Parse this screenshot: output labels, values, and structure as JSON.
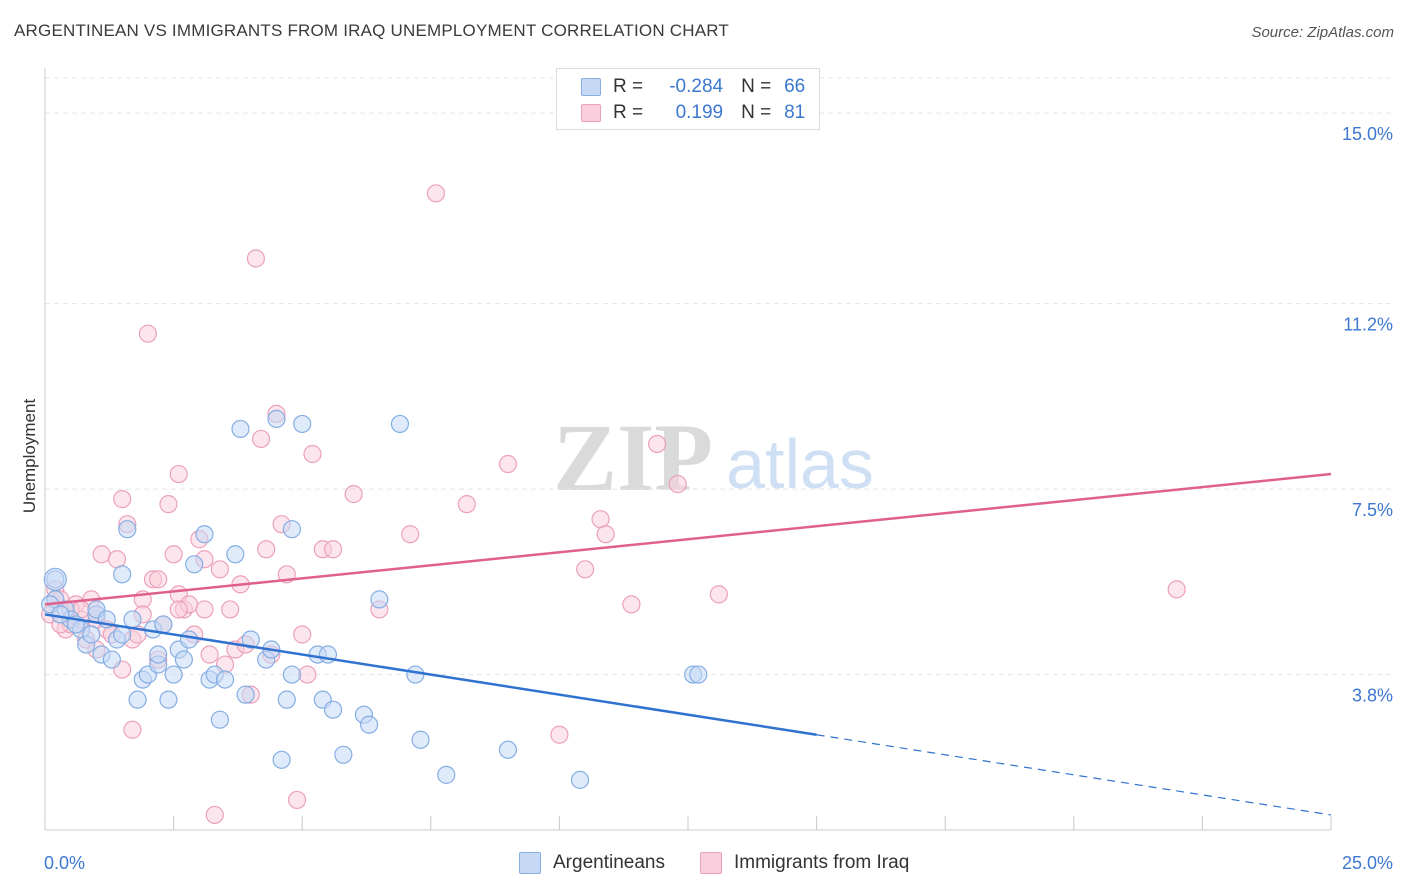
{
  "title": "ARGENTINEAN VS IMMIGRANTS FROM IRAQ UNEMPLOYMENT CORRELATION CHART",
  "source": "Source: ZipAtlas.com",
  "watermark": {
    "zip": "ZIP",
    "atlas": "atlas"
  },
  "legend": {
    "rows": [
      {
        "r_label": "R =",
        "r_value": "-0.284",
        "n_label": "N =",
        "n_value": "66",
        "color": "#86aee3"
      },
      {
        "r_label": "R =",
        "r_value": "0.199",
        "n_label": "N =",
        "n_value": "81",
        "color": "#eba1bb"
      }
    ]
  },
  "chart_data": {
    "type": "scatter",
    "title": "ARGENTINEAN VS IMMIGRANTS FROM IRAQ UNEMPLOYMENT CORRELATION CHART",
    "xlabel": "",
    "ylabel": "Unemployment",
    "xlim": [
      0,
      25
    ],
    "ylim": [
      0.7,
      15.7
    ],
    "x_tick_labels": [
      "0.0%",
      "25.0%"
    ],
    "y_ticks": [
      3.8,
      7.5,
      11.2,
      15.0
    ],
    "y_tick_labels": [
      "3.8%",
      "7.5%",
      "11.2%",
      "15.0%"
    ],
    "grid": "horizontal dashed",
    "legend_position": "bottom",
    "series": [
      {
        "name": "Argentineans",
        "color": "#86aee3",
        "fill": "#c5d9f5",
        "trend": {
          "x0": 0.0,
          "y0": 5.0,
          "x1": 15.0,
          "y1": 2.6,
          "dashed_to_x": 25.0,
          "dashed_to_y": 1.0,
          "color": "#2f72d0"
        },
        "points": [
          [
            0.2,
            5.7
          ],
          [
            0.2,
            5.3
          ],
          [
            0.4,
            5.1
          ],
          [
            0.5,
            4.9
          ],
          [
            0.7,
            4.7
          ],
          [
            0.8,
            4.4
          ],
          [
            0.9,
            4.6
          ],
          [
            1.0,
            5.0
          ],
          [
            1.0,
            5.1
          ],
          [
            1.1,
            4.2
          ],
          [
            1.2,
            4.9
          ],
          [
            1.3,
            4.1
          ],
          [
            1.4,
            4.5
          ],
          [
            1.5,
            5.8
          ],
          [
            1.6,
            6.7
          ],
          [
            1.7,
            4.9
          ],
          [
            1.8,
            3.3
          ],
          [
            1.9,
            3.7
          ],
          [
            2.0,
            3.8
          ],
          [
            2.1,
            4.7
          ],
          [
            2.2,
            4.0
          ],
          [
            2.3,
            4.8
          ],
          [
            2.4,
            3.3
          ],
          [
            2.5,
            3.8
          ],
          [
            2.6,
            4.3
          ],
          [
            2.7,
            4.1
          ],
          [
            2.8,
            4.5
          ],
          [
            2.9,
            6.0
          ],
          [
            3.1,
            6.6
          ],
          [
            3.2,
            3.7
          ],
          [
            3.3,
            3.8
          ],
          [
            3.4,
            2.9
          ],
          [
            3.5,
            3.7
          ],
          [
            3.7,
            6.2
          ],
          [
            3.8,
            8.7
          ],
          [
            3.9,
            3.4
          ],
          [
            4.0,
            4.5
          ],
          [
            4.3,
            4.1
          ],
          [
            4.4,
            4.3
          ],
          [
            4.5,
            8.9
          ],
          [
            4.6,
            2.1
          ],
          [
            4.7,
            3.3
          ],
          [
            4.8,
            3.8
          ],
          [
            4.8,
            6.7
          ],
          [
            5.0,
            8.8
          ],
          [
            5.3,
            4.2
          ],
          [
            5.4,
            3.3
          ],
          [
            5.5,
            4.2
          ],
          [
            5.6,
            3.1
          ],
          [
            5.8,
            2.2
          ],
          [
            6.2,
            3.0
          ],
          [
            6.3,
            2.8
          ],
          [
            6.5,
            5.3
          ],
          [
            6.9,
            8.8
          ],
          [
            7.2,
            3.8
          ],
          [
            7.3,
            2.5
          ],
          [
            7.8,
            1.8
          ],
          [
            9.0,
            2.3
          ],
          [
            10.4,
            1.7
          ],
          [
            12.6,
            3.8
          ],
          [
            12.7,
            3.8
          ],
          [
            0.1,
            5.2
          ],
          [
            0.3,
            5.0
          ],
          [
            0.6,
            4.8
          ],
          [
            1.5,
            4.6
          ],
          [
            2.2,
            4.2
          ]
        ]
      },
      {
        "name": "Immigrants from Iraq",
        "color": "#eba1bb",
        "fill": "#f9cfdd",
        "trend": {
          "x0": 0.0,
          "y0": 5.2,
          "x1": 25.0,
          "y1": 7.8,
          "color": "#e0608c"
        },
        "points": [
          [
            0.1,
            5.0
          ],
          [
            0.2,
            5.5
          ],
          [
            0.3,
            5.3
          ],
          [
            0.4,
            4.7
          ],
          [
            0.5,
            4.8
          ],
          [
            0.6,
            5.2
          ],
          [
            0.7,
            4.9
          ],
          [
            0.8,
            4.5
          ],
          [
            0.9,
            5.3
          ],
          [
            1.0,
            4.9
          ],
          [
            1.0,
            4.3
          ],
          [
            1.1,
            6.2
          ],
          [
            1.2,
            4.7
          ],
          [
            1.3,
            4.6
          ],
          [
            1.4,
            6.1
          ],
          [
            1.5,
            7.3
          ],
          [
            1.5,
            3.9
          ],
          [
            1.6,
            6.8
          ],
          [
            1.7,
            4.5
          ],
          [
            1.7,
            2.7
          ],
          [
            1.8,
            4.6
          ],
          [
            1.9,
            5.3
          ],
          [
            2.0,
            10.6
          ],
          [
            2.1,
            5.7
          ],
          [
            2.2,
            5.7
          ],
          [
            2.2,
            4.1
          ],
          [
            2.3,
            4.8
          ],
          [
            2.4,
            7.2
          ],
          [
            2.5,
            6.2
          ],
          [
            2.6,
            5.4
          ],
          [
            2.6,
            7.8
          ],
          [
            2.7,
            5.1
          ],
          [
            2.8,
            5.2
          ],
          [
            2.9,
            4.6
          ],
          [
            3.0,
            6.5
          ],
          [
            3.1,
            6.1
          ],
          [
            3.1,
            5.1
          ],
          [
            3.2,
            4.2
          ],
          [
            3.3,
            1.0
          ],
          [
            3.4,
            5.9
          ],
          [
            3.5,
            4.0
          ],
          [
            3.6,
            5.1
          ],
          [
            3.7,
            4.3
          ],
          [
            3.8,
            5.6
          ],
          [
            3.9,
            4.4
          ],
          [
            4.0,
            3.4
          ],
          [
            4.1,
            12.1
          ],
          [
            4.2,
            8.5
          ],
          [
            4.3,
            6.3
          ],
          [
            4.4,
            4.2
          ],
          [
            4.5,
            9.0
          ],
          [
            4.6,
            6.8
          ],
          [
            4.7,
            5.8
          ],
          [
            4.9,
            1.3
          ],
          [
            5.0,
            4.6
          ],
          [
            5.1,
            3.8
          ],
          [
            5.2,
            8.2
          ],
          [
            5.4,
            6.3
          ],
          [
            5.6,
            6.3
          ],
          [
            6.0,
            7.4
          ],
          [
            6.5,
            5.1
          ],
          [
            7.1,
            6.6
          ],
          [
            7.6,
            13.4
          ],
          [
            8.2,
            7.2
          ],
          [
            9.0,
            8.0
          ],
          [
            10.0,
            2.6
          ],
          [
            10.5,
            5.9
          ],
          [
            10.8,
            6.9
          ],
          [
            10.9,
            6.6
          ],
          [
            11.4,
            5.2
          ],
          [
            11.9,
            8.4
          ],
          [
            12.3,
            7.6
          ],
          [
            13.1,
            5.4
          ],
          [
            22.0,
            5.5
          ],
          [
            0.3,
            4.8
          ],
          [
            0.5,
            5.1
          ],
          [
            1.0,
            5.0
          ],
          [
            1.9,
            5.0
          ],
          [
            2.6,
            5.1
          ],
          [
            0.2,
            5.3
          ],
          [
            0.7,
            5.1
          ]
        ]
      }
    ]
  }
}
